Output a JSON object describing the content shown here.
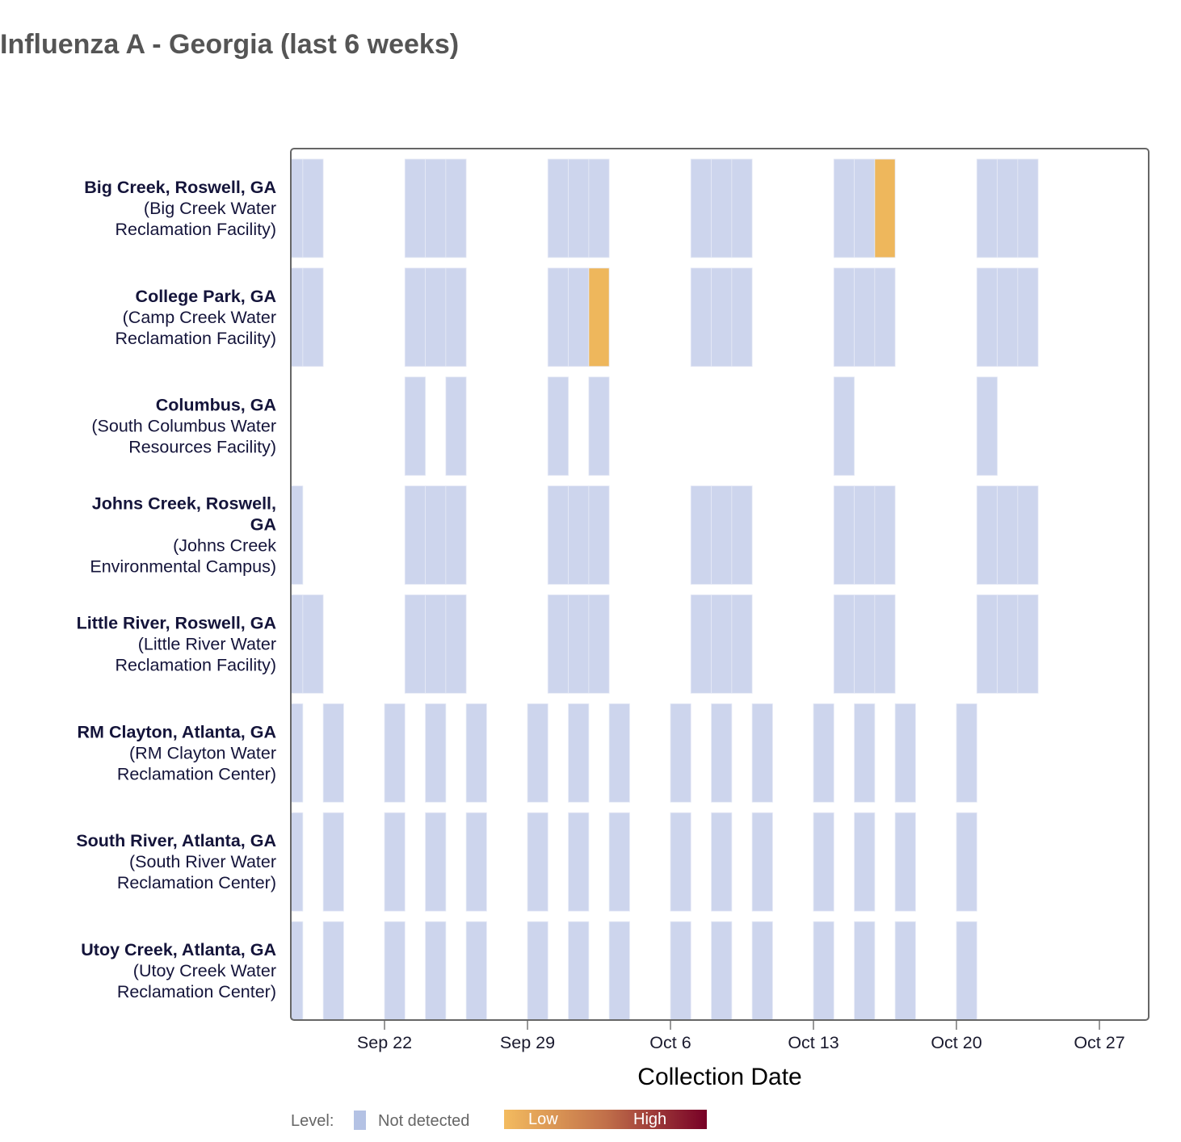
{
  "title": "Influenza A - Georgia (last 6 weeks)",
  "chart_data": {
    "type": "heatmap",
    "title": "Influenza A - Georgia (last 6 weeks)",
    "xlabel": "Collection Date",
    "ylabel": "",
    "x_range": [
      "2024-09-17",
      "2024-10-29"
    ],
    "x_ticks": [
      {
        "date": "2024-09-22",
        "label": "Sep 22"
      },
      {
        "date": "2024-09-29",
        "label": "Sep 29"
      },
      {
        "date": "2024-10-06",
        "label": "Oct 6"
      },
      {
        "date": "2024-10-13",
        "label": "Oct 13"
      },
      {
        "date": "2024-10-20",
        "label": "Oct 20"
      },
      {
        "date": "2024-10-27",
        "label": "Oct 27"
      }
    ],
    "colors": {
      "not_detected": "#cdd5ed",
      "low": "#eeb75c",
      "high": "#7a0030",
      "frame": "#666666"
    },
    "sites": [
      {
        "name": "Big Creek, Roswell, GA",
        "facility_lines": [
          "(Big Creek Water",
          "Reclamation Facility)"
        ],
        "name_lines": [
          "Big Creek, Roswell, GA"
        ],
        "samples": [
          {
            "date": "2024-09-17",
            "level": "Not detected"
          },
          {
            "date": "2024-09-18",
            "level": "Not detected"
          },
          {
            "date": "2024-09-23",
            "level": "Not detected"
          },
          {
            "date": "2024-09-24",
            "level": "Not detected"
          },
          {
            "date": "2024-09-25",
            "level": "Not detected"
          },
          {
            "date": "2024-09-30",
            "level": "Not detected"
          },
          {
            "date": "2024-10-01",
            "level": "Not detected"
          },
          {
            "date": "2024-10-02",
            "level": "Not detected"
          },
          {
            "date": "2024-10-07",
            "level": "Not detected"
          },
          {
            "date": "2024-10-08",
            "level": "Not detected"
          },
          {
            "date": "2024-10-09",
            "level": "Not detected"
          },
          {
            "date": "2024-10-14",
            "level": "Not detected"
          },
          {
            "date": "2024-10-15",
            "level": "Not detected"
          },
          {
            "date": "2024-10-16",
            "level": "Low"
          },
          {
            "date": "2024-10-21",
            "level": "Not detected"
          },
          {
            "date": "2024-10-22",
            "level": "Not detected"
          },
          {
            "date": "2024-10-23",
            "level": "Not detected"
          }
        ]
      },
      {
        "name": "College Park, GA",
        "name_lines": [
          "College Park, GA"
        ],
        "facility_lines": [
          "(Camp Creek Water",
          "Reclamation Facility)"
        ],
        "samples": [
          {
            "date": "2024-09-17",
            "level": "Not detected"
          },
          {
            "date": "2024-09-18",
            "level": "Not detected"
          },
          {
            "date": "2024-09-23",
            "level": "Not detected"
          },
          {
            "date": "2024-09-24",
            "level": "Not detected"
          },
          {
            "date": "2024-09-25",
            "level": "Not detected"
          },
          {
            "date": "2024-09-30",
            "level": "Not detected"
          },
          {
            "date": "2024-10-01",
            "level": "Not detected"
          },
          {
            "date": "2024-10-02",
            "level": "Low"
          },
          {
            "date": "2024-10-07",
            "level": "Not detected"
          },
          {
            "date": "2024-10-08",
            "level": "Not detected"
          },
          {
            "date": "2024-10-09",
            "level": "Not detected"
          },
          {
            "date": "2024-10-14",
            "level": "Not detected"
          },
          {
            "date": "2024-10-15",
            "level": "Not detected"
          },
          {
            "date": "2024-10-16",
            "level": "Not detected"
          },
          {
            "date": "2024-10-21",
            "level": "Not detected"
          },
          {
            "date": "2024-10-22",
            "level": "Not detected"
          },
          {
            "date": "2024-10-23",
            "level": "Not detected"
          }
        ]
      },
      {
        "name": "Columbus, GA",
        "name_lines": [
          "Columbus, GA"
        ],
        "facility_lines": [
          "(South Columbus Water",
          "Resources Facility)"
        ],
        "samples": [
          {
            "date": "2024-09-23",
            "level": "Not detected"
          },
          {
            "date": "2024-09-25",
            "level": "Not detected"
          },
          {
            "date": "2024-09-30",
            "level": "Not detected"
          },
          {
            "date": "2024-10-02",
            "level": "Not detected"
          },
          {
            "date": "2024-10-14",
            "level": "Not detected"
          },
          {
            "date": "2024-10-21",
            "level": "Not detected"
          }
        ]
      },
      {
        "name": "Johns Creek, Roswell, GA",
        "name_lines": [
          "Johns Creek, Roswell,",
          "GA"
        ],
        "facility_lines": [
          "(Johns Creek",
          "Environmental Campus)"
        ],
        "samples": [
          {
            "date": "2024-09-17",
            "level": "Not detected"
          },
          {
            "date": "2024-09-23",
            "level": "Not detected"
          },
          {
            "date": "2024-09-24",
            "level": "Not detected"
          },
          {
            "date": "2024-09-25",
            "level": "Not detected"
          },
          {
            "date": "2024-09-30",
            "level": "Not detected"
          },
          {
            "date": "2024-10-01",
            "level": "Not detected"
          },
          {
            "date": "2024-10-02",
            "level": "Not detected"
          },
          {
            "date": "2024-10-07",
            "level": "Not detected"
          },
          {
            "date": "2024-10-08",
            "level": "Not detected"
          },
          {
            "date": "2024-10-09",
            "level": "Not detected"
          },
          {
            "date": "2024-10-14",
            "level": "Not detected"
          },
          {
            "date": "2024-10-15",
            "level": "Not detected"
          },
          {
            "date": "2024-10-16",
            "level": "Not detected"
          },
          {
            "date": "2024-10-21",
            "level": "Not detected"
          },
          {
            "date": "2024-10-22",
            "level": "Not detected"
          },
          {
            "date": "2024-10-23",
            "level": "Not detected"
          }
        ]
      },
      {
        "name": "Little River, Roswell, GA",
        "name_lines": [
          "Little River, Roswell, GA"
        ],
        "facility_lines": [
          "(Little River Water",
          "Reclamation Facility)"
        ],
        "samples": [
          {
            "date": "2024-09-17",
            "level": "Not detected"
          },
          {
            "date": "2024-09-18",
            "level": "Not detected"
          },
          {
            "date": "2024-09-23",
            "level": "Not detected"
          },
          {
            "date": "2024-09-24",
            "level": "Not detected"
          },
          {
            "date": "2024-09-25",
            "level": "Not detected"
          },
          {
            "date": "2024-09-30",
            "level": "Not detected"
          },
          {
            "date": "2024-10-01",
            "level": "Not detected"
          },
          {
            "date": "2024-10-02",
            "level": "Not detected"
          },
          {
            "date": "2024-10-07",
            "level": "Not detected"
          },
          {
            "date": "2024-10-08",
            "level": "Not detected"
          },
          {
            "date": "2024-10-09",
            "level": "Not detected"
          },
          {
            "date": "2024-10-14",
            "level": "Not detected"
          },
          {
            "date": "2024-10-15",
            "level": "Not detected"
          },
          {
            "date": "2024-10-16",
            "level": "Not detected"
          },
          {
            "date": "2024-10-21",
            "level": "Not detected"
          },
          {
            "date": "2024-10-22",
            "level": "Not detected"
          },
          {
            "date": "2024-10-23",
            "level": "Not detected"
          }
        ]
      },
      {
        "name": "RM Clayton, Atlanta, GA",
        "name_lines": [
          "RM Clayton, Atlanta, GA"
        ],
        "facility_lines": [
          "(RM Clayton Water",
          "Reclamation Center)"
        ],
        "samples": [
          {
            "date": "2024-09-17",
            "level": "Not detected"
          },
          {
            "date": "2024-09-19",
            "level": "Not detected"
          },
          {
            "date": "2024-09-22",
            "level": "Not detected"
          },
          {
            "date": "2024-09-24",
            "level": "Not detected"
          },
          {
            "date": "2024-09-26",
            "level": "Not detected"
          },
          {
            "date": "2024-09-29",
            "level": "Not detected"
          },
          {
            "date": "2024-10-01",
            "level": "Not detected"
          },
          {
            "date": "2024-10-03",
            "level": "Not detected"
          },
          {
            "date": "2024-10-06",
            "level": "Not detected"
          },
          {
            "date": "2024-10-08",
            "level": "Not detected"
          },
          {
            "date": "2024-10-10",
            "level": "Not detected"
          },
          {
            "date": "2024-10-13",
            "level": "Not detected"
          },
          {
            "date": "2024-10-15",
            "level": "Not detected"
          },
          {
            "date": "2024-10-17",
            "level": "Not detected"
          },
          {
            "date": "2024-10-20",
            "level": "Not detected"
          }
        ]
      },
      {
        "name": "South River, Atlanta, GA",
        "name_lines": [
          "South River, Atlanta, GA"
        ],
        "facility_lines": [
          "(South River Water",
          "Reclamation Center)"
        ],
        "samples": [
          {
            "date": "2024-09-17",
            "level": "Not detected"
          },
          {
            "date": "2024-09-19",
            "level": "Not detected"
          },
          {
            "date": "2024-09-22",
            "level": "Not detected"
          },
          {
            "date": "2024-09-24",
            "level": "Not detected"
          },
          {
            "date": "2024-09-26",
            "level": "Not detected"
          },
          {
            "date": "2024-09-29",
            "level": "Not detected"
          },
          {
            "date": "2024-10-01",
            "level": "Not detected"
          },
          {
            "date": "2024-10-03",
            "level": "Not detected"
          },
          {
            "date": "2024-10-06",
            "level": "Not detected"
          },
          {
            "date": "2024-10-08",
            "level": "Not detected"
          },
          {
            "date": "2024-10-10",
            "level": "Not detected"
          },
          {
            "date": "2024-10-13",
            "level": "Not detected"
          },
          {
            "date": "2024-10-15",
            "level": "Not detected"
          },
          {
            "date": "2024-10-17",
            "level": "Not detected"
          },
          {
            "date": "2024-10-20",
            "level": "Not detected"
          }
        ]
      },
      {
        "name": "Utoy Creek, Atlanta, GA",
        "name_lines": [
          "Utoy Creek, Atlanta, GA"
        ],
        "facility_lines": [
          "(Utoy Creek Water",
          "Reclamation Center)"
        ],
        "samples": [
          {
            "date": "2024-09-17",
            "level": "Not detected"
          },
          {
            "date": "2024-09-19",
            "level": "Not detected"
          },
          {
            "date": "2024-09-22",
            "level": "Not detected"
          },
          {
            "date": "2024-09-24",
            "level": "Not detected"
          },
          {
            "date": "2024-09-26",
            "level": "Not detected"
          },
          {
            "date": "2024-09-29",
            "level": "Not detected"
          },
          {
            "date": "2024-10-01",
            "level": "Not detected"
          },
          {
            "date": "2024-10-03",
            "level": "Not detected"
          },
          {
            "date": "2024-10-06",
            "level": "Not detected"
          },
          {
            "date": "2024-10-08",
            "level": "Not detected"
          },
          {
            "date": "2024-10-10",
            "level": "Not detected"
          },
          {
            "date": "2024-10-13",
            "level": "Not detected"
          },
          {
            "date": "2024-10-15",
            "level": "Not detected"
          },
          {
            "date": "2024-10-17",
            "level": "Not detected"
          },
          {
            "date": "2024-10-20",
            "level": "Not detected"
          }
        ]
      }
    ],
    "legend": {
      "title": "Level:",
      "not_detected_label": "Not detected",
      "low_label": "Low",
      "high_label": "High",
      "placement": "bottom-left"
    }
  }
}
